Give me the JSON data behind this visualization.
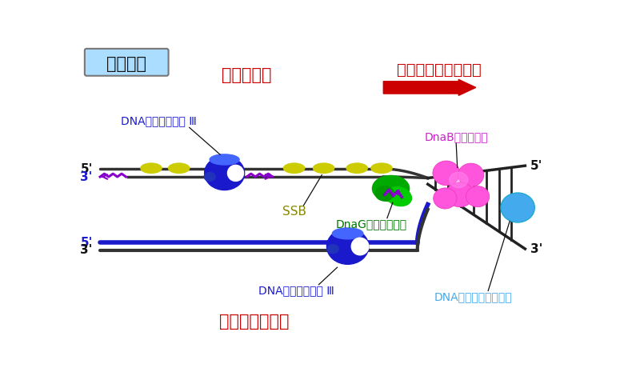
{
  "background_color": "#ffffff",
  "label_prokaryote": "原核生物",
  "label_lagging": "ラギング鎖",
  "label_fork": "複製フォークの進行",
  "label_dnaB": "DnaBヘリカーゼ",
  "label_SSB": "SSB",
  "label_DnaG": "DnaGプライマーゼ",
  "label_topo": "DNAトポイソメラーゼ",
  "label_pol3_top": "DNAポリメラーゼ Ⅲ",
  "label_pol3_bot": "DNAポリメラーゼ Ⅲ",
  "label_leading": "リーディング鎖",
  "color_gray_box": "#aaddff",
  "C_DARK_BLUE": "#1a1acc",
  "C_LIGHT_BLUE": "#44aaee",
  "C_PINK": "#ff55dd",
  "C_GREEN": "#009900",
  "C_YELLOW": "#cccc00",
  "C_RED": "#cc0000",
  "C_BLACK": "#111111",
  "C_PURPLE": "#8800cc"
}
